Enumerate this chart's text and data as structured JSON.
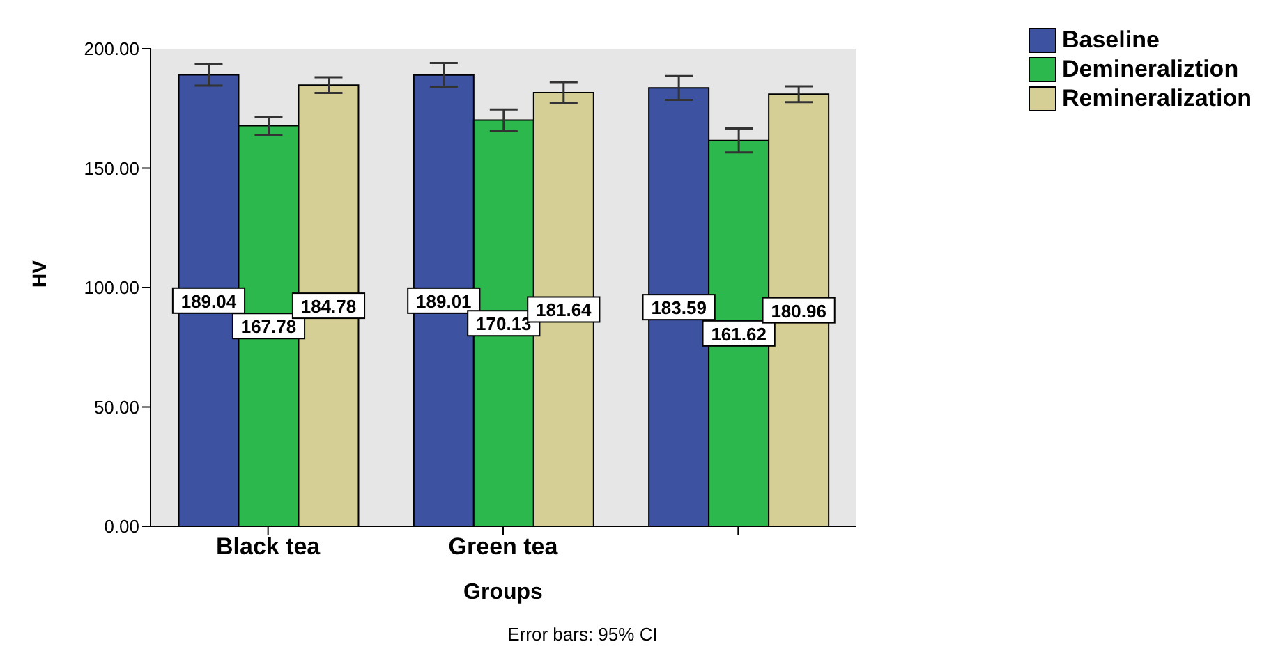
{
  "chart_data": {
    "type": "bar",
    "xlabel": "Groups",
    "ylabel": "HV",
    "categories": [
      "Black tea",
      "Green tea",
      null
    ],
    "series": [
      {
        "name": "Baseline",
        "color": "#3d52a1",
        "values": [
          189.04,
          189.01,
          183.59
        ],
        "errors": [
          4.5,
          5,
          5
        ]
      },
      {
        "name": "Demineraliztion",
        "color": "#2db84d",
        "values": [
          167.78,
          170.13,
          161.62
        ],
        "errors": [
          3.8,
          4.4,
          5
        ]
      },
      {
        "name": "Remineralization",
        "color": "#d5cf95",
        "values": [
          184.78,
          181.64,
          180.96
        ],
        "errors": [
          3.3,
          4.4,
          3.3
        ]
      }
    ],
    "ylim": [
      0,
      200
    ],
    "yticks": [
      {
        "value": 0,
        "label": "0.00"
      },
      {
        "value": 50,
        "label": "50.00"
      },
      {
        "value": 100,
        "label": "100.00"
      },
      {
        "value": 150,
        "label": "150.00"
      },
      {
        "value": 200,
        "label": "200.00"
      }
    ],
    "data_labels": true,
    "legend": "top right",
    "annotations": [
      "Error bars: 95% CI"
    ]
  }
}
